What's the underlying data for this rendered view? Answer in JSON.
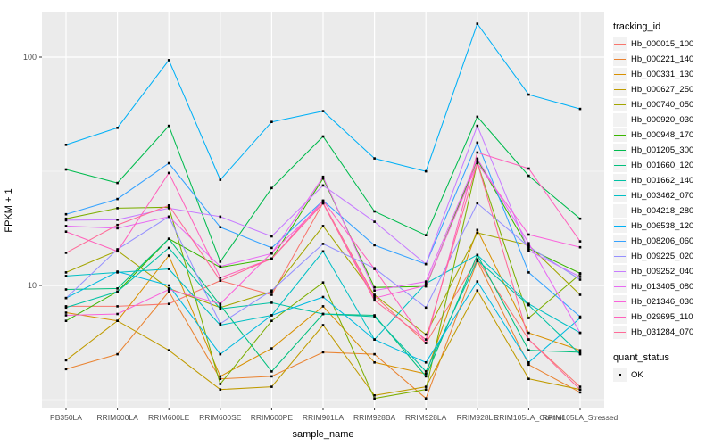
{
  "figure": {
    "background": "#FFFFFF",
    "panel_background": "#EBEBEB",
    "gridline_color": "#FFFFFF",
    "axis_text_color": "#4D4D4D",
    "axis_title_color": "#000000",
    "legend_key_background": "#F2F2F2"
  },
  "chart_data": {
    "type": "line",
    "title": "",
    "xlabel": "sample_name",
    "ylabel": "FPKM + 1",
    "yscale": "log10",
    "ytick_labels": [
      "100",
      "10"
    ],
    "ytick_values": [
      100,
      10
    ],
    "minor_gridline_values": [
      31.623,
      3.1623
    ],
    "ylim_log_top": 160,
    "ylim_log_bottom": 2.9,
    "grid": "on",
    "legend_position": "right",
    "categories": [
      "PB350LA",
      "RRIM600LA",
      "RRIM600LE",
      "RRIM600SE",
      "RRIM600PE",
      "RRIM901LA",
      "RRIM928BA",
      "RRIM928LA",
      "RRIM928LE",
      "RRIM105LA_Control",
      "RRIM105LA_Stressed"
    ],
    "legend": {
      "title": "tracking_id"
    },
    "point_legend": {
      "title": "quant_status",
      "items": [
        {
          "label": "OK",
          "marker": "filled-square",
          "color": "#000000"
        }
      ]
    },
    "marker": {
      "shape": "square",
      "color": "#000000",
      "size": 2.6
    },
    "series": [
      {
        "name": "Hb_000015_100",
        "color": "#F8766D",
        "values": [
          8.1,
          8.1,
          8.3,
          10.5,
          9.1,
          23.0,
          9.0,
          5.6,
          13.0,
          5.8,
          3.6
        ]
      },
      {
        "name": "Hb_000221_140",
        "color": "#EA8331",
        "values": [
          4.3,
          5.0,
          9.4,
          3.9,
          4.0,
          5.1,
          5.0,
          3.2,
          12.8,
          4.5,
          3.4
        ]
      },
      {
        "name": "Hb_000331_130",
        "color": "#D89000",
        "values": [
          7.6,
          7.0,
          13.5,
          4.0,
          5.3,
          8.1,
          4.6,
          4.1,
          17.5,
          6.2,
          5.2
        ]
      },
      {
        "name": "Hb_000627_250",
        "color": "#C09B00",
        "values": [
          4.7,
          7.0,
          5.2,
          3.5,
          3.6,
          6.7,
          3.3,
          3.6,
          9.5,
          3.9,
          3.5
        ]
      },
      {
        "name": "Hb_000740_050",
        "color": "#A3A500",
        "values": [
          11.4,
          14.2,
          9.7,
          8.0,
          9.4,
          18.2,
          9.1,
          6.1,
          17.0,
          15.0,
          9.1
        ]
      },
      {
        "name": "Hb_000920_030",
        "color": "#7CAE00",
        "values": [
          19.6,
          21.8,
          22.0,
          3.7,
          7.0,
          10.3,
          3.2,
          3.5,
          34.5,
          7.2,
          11.2
        ]
      },
      {
        "name": "Hb_000948_170",
        "color": "#39B600",
        "values": [
          7.0,
          9.4,
          16.0,
          12.0,
          13.1,
          29.4,
          9.8,
          9.9,
          35.5,
          14.5,
          11.3
        ]
      },
      {
        "name": "Hb_001205_300",
        "color": "#00BB4E",
        "values": [
          32.2,
          28.1,
          50.0,
          12.7,
          26.7,
          44.9,
          21.1,
          16.6,
          54.8,
          30.2,
          19.6
        ]
      },
      {
        "name": "Hb_001660_120",
        "color": "#00BF7D",
        "values": [
          9.6,
          9.7,
          16.0,
          8.2,
          4.2,
          7.5,
          7.4,
          4.0,
          13.6,
          5.2,
          5.1
        ]
      },
      {
        "name": "Hb_001662_140",
        "color": "#00C1A3",
        "values": [
          8.0,
          9.4,
          14.6,
          7.9,
          8.4,
          7.5,
          7.3,
          4.2,
          12.9,
          8.2,
          5.0
        ]
      },
      {
        "name": "Hb_003462_070",
        "color": "#00BFC4",
        "values": [
          11.0,
          11.4,
          11.8,
          6.7,
          7.4,
          14.1,
          5.8,
          10.2,
          13.6,
          8.3,
          6.2
        ]
      },
      {
        "name": "Hb_004218_280",
        "color": "#00BAE0",
        "values": [
          8.8,
          11.5,
          10.0,
          5.0,
          7.4,
          8.9,
          5.8,
          4.6,
          10.4,
          4.6,
          7.2
        ]
      },
      {
        "name": "Hb_006538_120",
        "color": "#00B0F6",
        "values": [
          41.3,
          49.0,
          97.0,
          29.0,
          52.0,
          58.0,
          36.0,
          31.6,
          140.0,
          68.5,
          59.3
        ]
      },
      {
        "name": "Hb_008206_060",
        "color": "#35A2FF",
        "values": [
          20.5,
          23.9,
          34.3,
          18.0,
          14.6,
          23.5,
          15.0,
          12.4,
          42.2,
          11.4,
          7.3
        ]
      },
      {
        "name": "Hb_009225_020",
        "color": "#9590FF",
        "values": [
          8.8,
          14.4,
          20.0,
          6.8,
          9.5,
          15.2,
          11.9,
          8.0,
          22.9,
          14.8,
          10.6
        ]
      },
      {
        "name": "Hb_009252_040",
        "color": "#C77CFF",
        "values": [
          19.3,
          19.4,
          21.8,
          20.0,
          16.4,
          27.4,
          19.0,
          12.4,
          50.0,
          14.2,
          10.9
        ]
      },
      {
        "name": "Hb_013405_080",
        "color": "#E76BF3",
        "values": [
          18.2,
          17.8,
          20.0,
          12.1,
          13.8,
          29.9,
          9.5,
          10.4,
          35.9,
          15.3,
          6.2
        ]
      },
      {
        "name": "Hb_021346_030",
        "color": "#FA62DB",
        "values": [
          7.4,
          7.5,
          9.6,
          8.3,
          13.9,
          22.9,
          8.8,
          10.0,
          34.3,
          16.7,
          14.7
        ]
      },
      {
        "name": "Hb_029695_110",
        "color": "#FF62BC",
        "values": [
          17.2,
          14.1,
          31.1,
          10.8,
          13.1,
          23.5,
          11.8,
          5.6,
          38.2,
          32.5,
          15.6
        ]
      },
      {
        "name": "Hb_031284_070",
        "color": "#FF6A98",
        "values": [
          13.9,
          18.4,
          22.4,
          10.5,
          13.1,
          22.9,
          8.6,
          5.8,
          34.5,
          5.8,
          3.5
        ]
      }
    ]
  }
}
